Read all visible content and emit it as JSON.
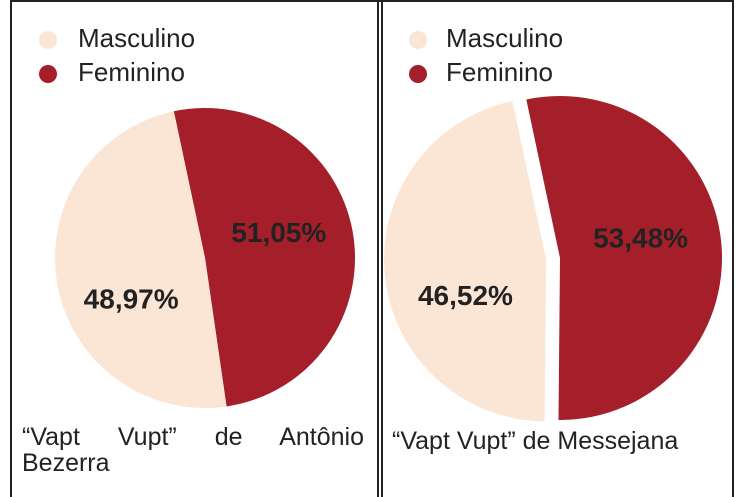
{
  "chart_data": [
    {
      "type": "pie",
      "title": "“Vapt Vupt” de Antônio Bezerra",
      "categories": [
        "Masculino",
        "Feminino"
      ],
      "values": [
        48.97,
        51.05
      ],
      "value_labels": [
        "48,97%",
        "51,05%"
      ],
      "colors": [
        "#fbe6d6",
        "#a51f2a"
      ],
      "explode": false
    },
    {
      "type": "pie",
      "title": "“Vapt Vupt” de Messejana",
      "categories": [
        "Masculino",
        "Feminino"
      ],
      "values": [
        46.52,
        53.48
      ],
      "value_labels": [
        "46,52%",
        "53,48%"
      ],
      "colors": [
        "#fbe6d6",
        "#a51f2a"
      ],
      "explode": true
    }
  ]
}
